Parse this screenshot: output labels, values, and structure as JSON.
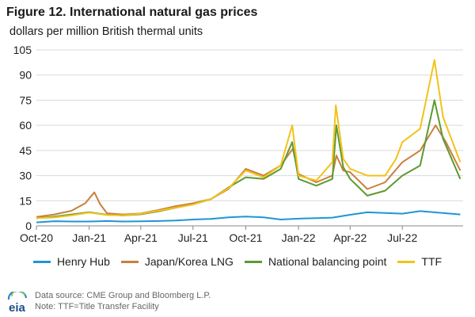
{
  "header": {
    "title": "Figure 12. International natural gas prices",
    "subtitle": "dollars per million British thermal units"
  },
  "chart_data": {
    "type": "line",
    "ylabel": "dollars per million British thermal units",
    "ylim": [
      0,
      105
    ],
    "yticks": [
      0,
      15,
      30,
      45,
      60,
      75,
      90,
      105
    ],
    "xlim": [
      "2020-10-01",
      "2022-10-15"
    ],
    "xticks": [
      {
        "date": "2020-10-01",
        "label": "Oct-20"
      },
      {
        "date": "2021-01-01",
        "label": "Jan-21"
      },
      {
        "date": "2021-04-01",
        "label": "Apr-21"
      },
      {
        "date": "2021-07-01",
        "label": "Jul-21"
      },
      {
        "date": "2021-10-01",
        "label": "Oct-21"
      },
      {
        "date": "2022-01-01",
        "label": "Jan-22"
      },
      {
        "date": "2022-04-01",
        "label": "Apr-22"
      },
      {
        "date": "2022-07-01",
        "label": "Jul-22"
      }
    ],
    "grid": "horizontal",
    "legend": "bottom",
    "series": [
      {
        "name": "Henry Hub",
        "color": "#1f96d3",
        "points": [
          [
            "2020-10-01",
            2.1
          ],
          [
            "2020-11-01",
            2.8
          ],
          [
            "2020-12-01",
            2.6
          ],
          [
            "2021-01-01",
            2.6
          ],
          [
            "2021-02-01",
            2.9
          ],
          [
            "2021-03-01",
            2.6
          ],
          [
            "2021-04-01",
            2.7
          ],
          [
            "2021-05-01",
            2.9
          ],
          [
            "2021-06-01",
            3.2
          ],
          [
            "2021-07-01",
            3.8
          ],
          [
            "2021-08-01",
            4.1
          ],
          [
            "2021-09-01",
            5.1
          ],
          [
            "2021-10-01",
            5.6
          ],
          [
            "2021-11-01",
            5.1
          ],
          [
            "2021-12-01",
            3.8
          ],
          [
            "2022-01-01",
            4.3
          ],
          [
            "2022-02-01",
            4.6
          ],
          [
            "2022-03-01",
            4.9
          ],
          [
            "2022-04-01",
            6.6
          ],
          [
            "2022-05-01",
            8.1
          ],
          [
            "2022-06-01",
            7.7
          ],
          [
            "2022-07-01",
            7.3
          ],
          [
            "2022-08-01",
            8.8
          ],
          [
            "2022-09-01",
            7.9
          ],
          [
            "2022-10-10",
            6.8
          ]
        ]
      },
      {
        "name": "Japan/Korea LNG",
        "color": "#c8803c",
        "points": [
          [
            "2020-10-01",
            5.3
          ],
          [
            "2020-11-01",
            6.8
          ],
          [
            "2020-12-01",
            9.0
          ],
          [
            "2020-12-25",
            13.5
          ],
          [
            "2021-01-10",
            20.0
          ],
          [
            "2021-01-20",
            13.0
          ],
          [
            "2021-02-01",
            7.5
          ],
          [
            "2021-03-01",
            6.8
          ],
          [
            "2021-04-01",
            7.4
          ],
          [
            "2021-05-01",
            9.4
          ],
          [
            "2021-06-01",
            11.8
          ],
          [
            "2021-07-01",
            13.5
          ],
          [
            "2021-08-01",
            16.0
          ],
          [
            "2021-09-01",
            22.0
          ],
          [
            "2021-10-01",
            34.0
          ],
          [
            "2021-11-01",
            30.0
          ],
          [
            "2021-12-01",
            36.0
          ],
          [
            "2021-12-22",
            46.0
          ],
          [
            "2022-01-01",
            31.0
          ],
          [
            "2022-02-01",
            26.0
          ],
          [
            "2022-03-01",
            30.0
          ],
          [
            "2022-03-08",
            42.0
          ],
          [
            "2022-03-20",
            33.0
          ],
          [
            "2022-04-01",
            32.0
          ],
          [
            "2022-05-01",
            22.0
          ],
          [
            "2022-06-01",
            26.0
          ],
          [
            "2022-07-01",
            38.0
          ],
          [
            "2022-08-01",
            45.0
          ],
          [
            "2022-08-28",
            60.0
          ],
          [
            "2022-09-15",
            50.0
          ],
          [
            "2022-10-10",
            33.0
          ]
        ]
      },
      {
        "name": "National balancing point",
        "color": "#5d9a32",
        "points": [
          [
            "2020-10-01",
            4.6
          ],
          [
            "2020-11-01",
            5.5
          ],
          [
            "2020-12-01",
            6.8
          ],
          [
            "2021-01-01",
            8.2
          ],
          [
            "2021-02-01",
            6.6
          ],
          [
            "2021-03-01",
            6.2
          ],
          [
            "2021-04-01",
            6.9
          ],
          [
            "2021-05-01",
            8.6
          ],
          [
            "2021-06-01",
            10.8
          ],
          [
            "2021-07-01",
            12.8
          ],
          [
            "2021-08-01",
            15.9
          ],
          [
            "2021-09-01",
            23.0
          ],
          [
            "2021-10-01",
            29.0
          ],
          [
            "2021-11-01",
            28.0
          ],
          [
            "2021-12-01",
            34.0
          ],
          [
            "2021-12-21",
            50.0
          ],
          [
            "2022-01-01",
            28.0
          ],
          [
            "2022-02-01",
            24.0
          ],
          [
            "2022-03-01",
            28.0
          ],
          [
            "2022-03-08",
            60.0
          ],
          [
            "2022-03-20",
            35.0
          ],
          [
            "2022-04-01",
            28.0
          ],
          [
            "2022-05-01",
            18.0
          ],
          [
            "2022-06-01",
            21.0
          ],
          [
            "2022-07-01",
            30.0
          ],
          [
            "2022-08-01",
            36.0
          ],
          [
            "2022-08-26",
            75.0
          ],
          [
            "2022-09-10",
            52.0
          ],
          [
            "2022-10-10",
            28.0
          ]
        ]
      },
      {
        "name": "TTF",
        "color": "#f3c219",
        "points": [
          [
            "2020-10-01",
            4.6
          ],
          [
            "2020-11-01",
            5.0
          ],
          [
            "2020-12-01",
            6.3
          ],
          [
            "2021-01-01",
            7.9
          ],
          [
            "2021-02-01",
            6.5
          ],
          [
            "2021-03-01",
            6.3
          ],
          [
            "2021-04-01",
            7.2
          ],
          [
            "2021-05-01",
            9.0
          ],
          [
            "2021-06-01",
            10.9
          ],
          [
            "2021-07-01",
            12.7
          ],
          [
            "2021-08-01",
            16.0
          ],
          [
            "2021-09-01",
            22.5
          ],
          [
            "2021-10-01",
            33.0
          ],
          [
            "2021-11-01",
            29.0
          ],
          [
            "2021-12-01",
            36.0
          ],
          [
            "2021-12-21",
            60.0
          ],
          [
            "2022-01-01",
            30.0
          ],
          [
            "2022-02-01",
            27.0
          ],
          [
            "2022-03-01",
            38.0
          ],
          [
            "2022-03-07",
            72.0
          ],
          [
            "2022-03-20",
            40.0
          ],
          [
            "2022-04-01",
            34.0
          ],
          [
            "2022-05-01",
            30.0
          ],
          [
            "2022-06-01",
            30.0
          ],
          [
            "2022-06-20",
            40.0
          ],
          [
            "2022-07-01",
            50.0
          ],
          [
            "2022-08-01",
            58.0
          ],
          [
            "2022-08-26",
            99.0
          ],
          [
            "2022-09-10",
            65.0
          ],
          [
            "2022-10-10",
            38.0
          ]
        ]
      }
    ]
  },
  "footer": {
    "logo_text": "eia",
    "source": "Data source: CME Group and Bloomberg L.P.",
    "note": "Note: TTF=Title Transfer Facility"
  }
}
